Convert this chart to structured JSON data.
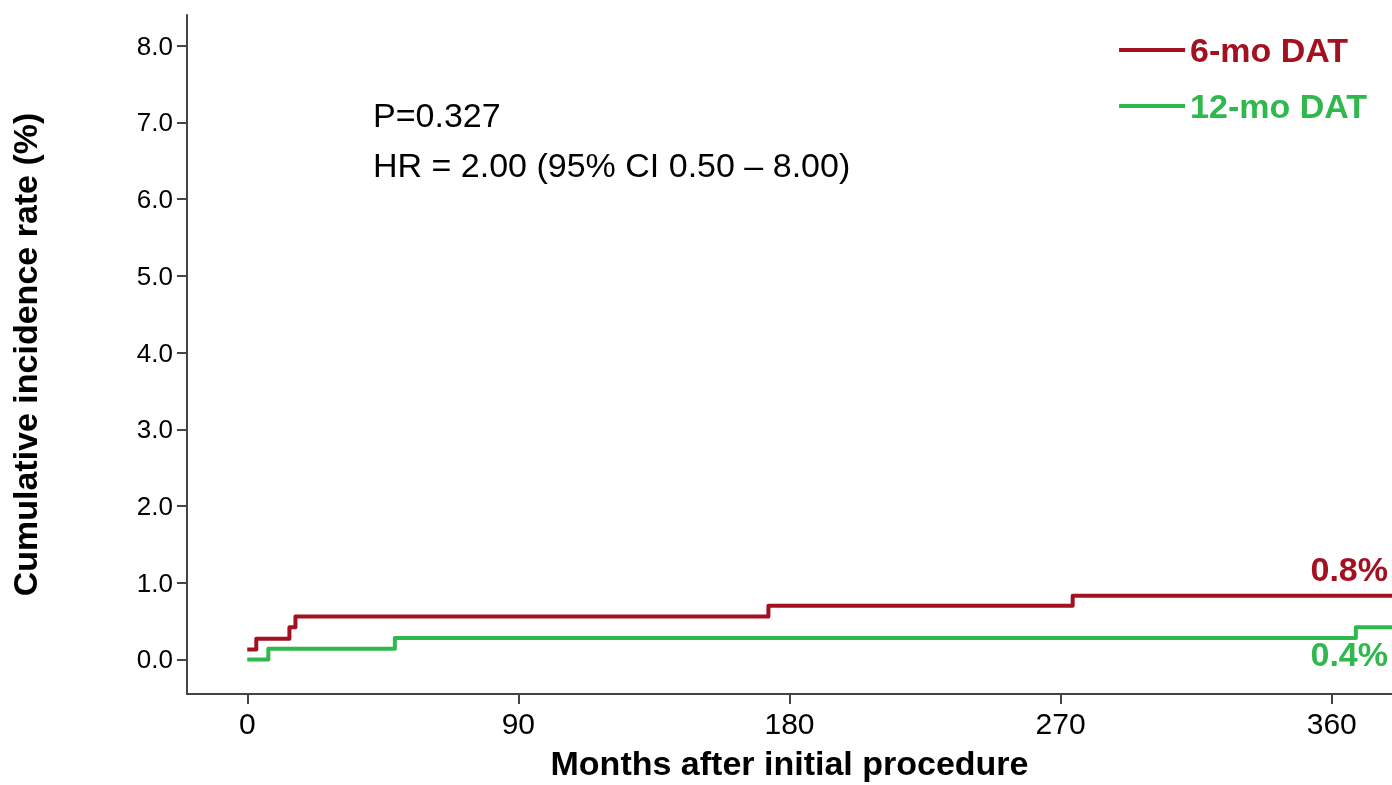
{
  "chart_data": {
    "type": "step",
    "xlabel": "Months after initial procedure",
    "ylabel": "Cumulative incidence rate (%)",
    "annotations": [
      "P=0.327",
      "HR = 2.00 (95% CI 0.50 – 8.00)"
    ],
    "xlim": [
      -20,
      380
    ],
    "xticks": [
      0,
      90,
      180,
      270,
      360
    ],
    "ylim": [
      -0.45,
      8.4
    ],
    "yticks": [
      {
        "value": 0,
        "label": "0.0"
      },
      {
        "value": 1,
        "label": "1.0"
      },
      {
        "value": 2,
        "label": "2.0"
      },
      {
        "value": 3,
        "label": "3.0"
      },
      {
        "value": 4,
        "label": "4.0"
      },
      {
        "value": 5,
        "label": "5.0"
      },
      {
        "value": 6,
        "label": "6.0"
      },
      {
        "value": 7,
        "label": "7.0"
      },
      {
        "value": 8,
        "label": "8.0"
      }
    ],
    "grid": false,
    "legend": "top right",
    "marker": "none",
    "line_style": "solid",
    "series": [
      {
        "name": "6-mo DAT",
        "color": "#a3101f",
        "x": [
          0,
          3,
          14,
          16,
          173,
          274,
          380
        ],
        "values": [
          0.13,
          0.27,
          0.42,
          0.56,
          0.7,
          0.83,
          0.83
        ],
        "value_labels": [
          null,
          null,
          null,
          null,
          null,
          null,
          "0.8%"
        ]
      },
      {
        "name": "12-mo DAT",
        "color": "#2fb84c",
        "x": [
          0,
          7,
          49,
          368,
          380
        ],
        "values": [
          0,
          0.14,
          0.28,
          0.42,
          0.42
        ],
        "value_labels": [
          null,
          null,
          null,
          null,
          "0.4%"
        ]
      }
    ]
  }
}
